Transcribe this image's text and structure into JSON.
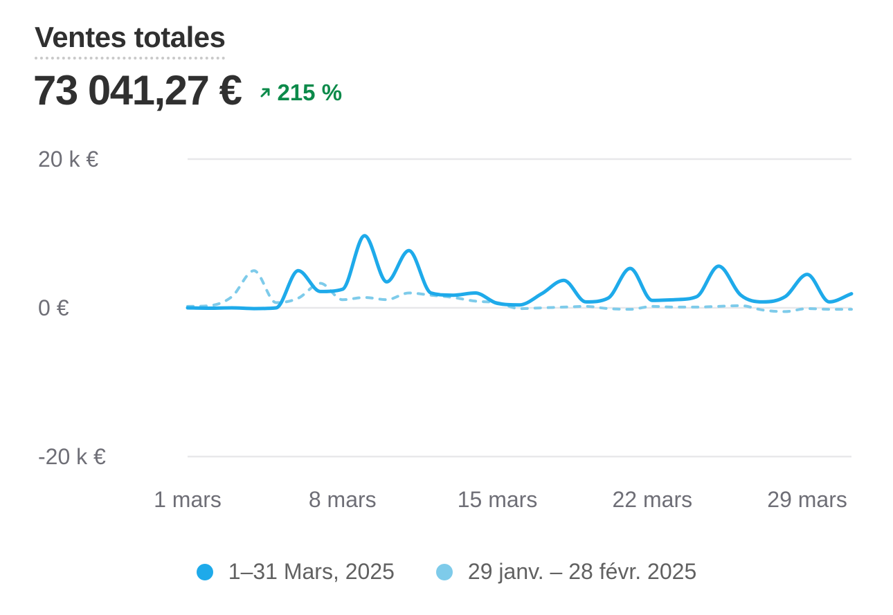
{
  "header": {
    "title": "Ventes totales",
    "value": "73 041,27 €",
    "change": "215 %",
    "change_icon": "arrow-up-right-icon",
    "change_color": "#0c8a4a"
  },
  "chart_data": {
    "type": "line",
    "title": "Ventes totales",
    "xlabel": "",
    "ylabel": "",
    "x_ticks": [
      {
        "day": 1,
        "label": "1 mars"
      },
      {
        "day": 8,
        "label": "8 mars"
      },
      {
        "day": 15,
        "label": "15 mars"
      },
      {
        "day": 22,
        "label": "22 mars"
      },
      {
        "day": 29,
        "label": "29 mars"
      }
    ],
    "y_ticks": [
      {
        "value": 20000,
        "label": "20 k €"
      },
      {
        "value": 0,
        "label": "0 €"
      },
      {
        "value": -20000,
        "label": "-20 k €"
      }
    ],
    "xlim": [
      1,
      31
    ],
    "ylim": [
      -20000,
      20000
    ],
    "grid": true,
    "legend_position": "bottom",
    "series": [
      {
        "name": "1–31 Mars, 2025",
        "color": "#1eaaea",
        "style": "solid",
        "x": [
          1,
          2,
          3,
          4,
          5,
          6,
          7,
          8,
          9,
          10,
          11,
          12,
          13,
          14,
          15,
          16,
          17,
          18,
          19,
          20,
          21,
          22,
          23,
          24,
          25,
          26,
          27,
          28,
          29,
          30,
          31
        ],
        "values": [
          0,
          -50,
          0,
          -100,
          0,
          5000,
          2200,
          2500,
          9700,
          3500,
          7700,
          2000,
          1700,
          2000,
          600,
          400,
          1900,
          3700,
          800,
          1300,
          5300,
          1000,
          1100,
          1500,
          5600,
          1700,
          800,
          1500,
          4500,
          800,
          1900
        ]
      },
      {
        "name": "29 janv. – 28 févr. 2025",
        "color": "#7ecbea",
        "style": "dashed",
        "x": [
          1,
          2,
          3,
          4,
          5,
          6,
          7,
          8,
          9,
          10,
          11,
          12,
          13,
          14,
          15,
          16,
          17,
          18,
          19,
          20,
          21,
          22,
          23,
          24,
          25,
          26,
          27,
          28,
          29,
          30,
          31
        ],
        "values": [
          200,
          300,
          1500,
          5000,
          700,
          1300,
          3300,
          1100,
          1400,
          1100,
          2000,
          1700,
          1400,
          900,
          700,
          -100,
          0,
          100,
          200,
          -100,
          -200,
          200,
          100,
          100,
          200,
          300,
          -300,
          -500,
          -100,
          -200,
          -200
        ]
      }
    ]
  }
}
